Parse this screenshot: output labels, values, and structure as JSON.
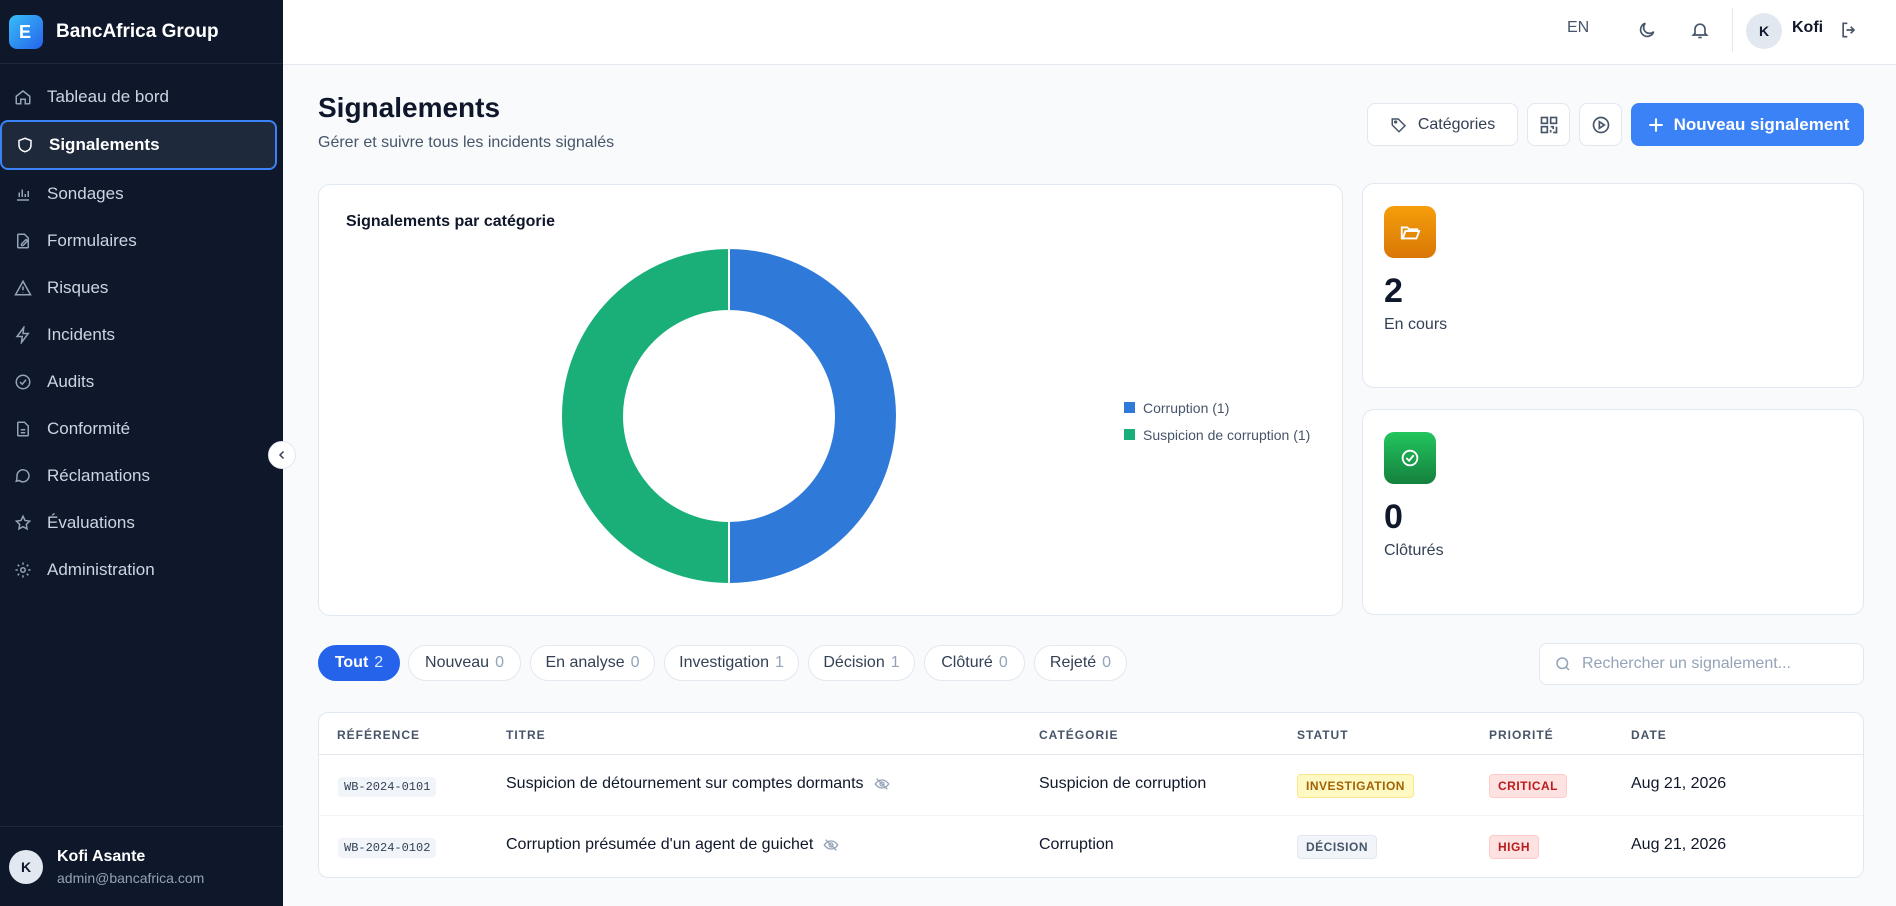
{
  "brand": {
    "name": "BancAfrica Group"
  },
  "sidebar": {
    "items": [
      {
        "label": "Tableau de bord",
        "icon": "home-icon"
      },
      {
        "label": "Signalements",
        "icon": "shield-icon",
        "active": true
      },
      {
        "label": "Sondages",
        "icon": "bar-chart-icon"
      },
      {
        "label": "Formulaires",
        "icon": "form-edit-icon"
      },
      {
        "label": "Risques",
        "icon": "warning-icon"
      },
      {
        "label": "Incidents",
        "icon": "lightning-icon"
      },
      {
        "label": "Audits",
        "icon": "check-circle-icon"
      },
      {
        "label": "Conformité",
        "icon": "document-icon"
      },
      {
        "label": "Réclamations",
        "icon": "message-icon"
      },
      {
        "label": "Évaluations",
        "icon": "star-icon"
      },
      {
        "label": "Administration",
        "icon": "gear-icon"
      }
    ],
    "user": {
      "initial": "K",
      "name": "Kofi Asante",
      "email": "admin@bancafrica.com"
    }
  },
  "topbar": {
    "lang": "EN",
    "user_initial": "K",
    "user_name": "Kofi"
  },
  "header": {
    "title": "Signalements",
    "subtitle": "Gérer et suivre tous les incidents signalés",
    "categories_label": "Catégories",
    "new_label": "Nouveau signalement"
  },
  "chart_card": {
    "title": "Signalements par catégorie"
  },
  "chart_data": {
    "type": "pie",
    "title": "Signalements par catégorie",
    "donut": true,
    "legend_position": "right",
    "series": [
      {
        "name": "Corruption (1)",
        "value": 1,
        "color": "#2f7ad8"
      },
      {
        "name": "Suspicion de corruption (1)",
        "value": 1,
        "color": "#1aaf78"
      }
    ]
  },
  "stats": [
    {
      "value": "2",
      "label": "En cours",
      "icon": "folder-open-icon",
      "color": "#ea7f0c"
    },
    {
      "value": "0",
      "label": "Clôturés",
      "icon": "check-circle-icon",
      "color": "#16a34a"
    }
  ],
  "filters": [
    {
      "label": "Tout",
      "count": "2",
      "active": true
    },
    {
      "label": "Nouveau",
      "count": "0"
    },
    {
      "label": "En analyse",
      "count": "0"
    },
    {
      "label": "Investigation",
      "count": "1"
    },
    {
      "label": "Décision",
      "count": "1"
    },
    {
      "label": "Clôturé",
      "count": "0"
    },
    {
      "label": "Rejeté",
      "count": "0"
    }
  ],
  "search": {
    "placeholder": "Rechercher un signalement..."
  },
  "table": {
    "columns": [
      "RÉFÉRENCE",
      "TITRE",
      "CATÉGORIE",
      "STATUT",
      "PRIORITÉ",
      "DATE"
    ],
    "rows": [
      {
        "ref": "WB-2024-0101",
        "title": "Suspicion de détournement sur comptes dormants",
        "category": "Suspicion de corruption",
        "status": "INVESTIGATION",
        "priority": "CRITICAL",
        "date": "Aug 21, 2026"
      },
      {
        "ref": "WB-2024-0102",
        "title": "Corruption présumée d'un agent de guichet",
        "category": "Corruption",
        "status": "DÉCISION",
        "priority": "HIGH",
        "date": "Aug 21, 2026"
      }
    ]
  },
  "colors": {
    "primary": "#3b82f6",
    "sidebar": "#0f172a",
    "active_chip": "#2563eb"
  }
}
